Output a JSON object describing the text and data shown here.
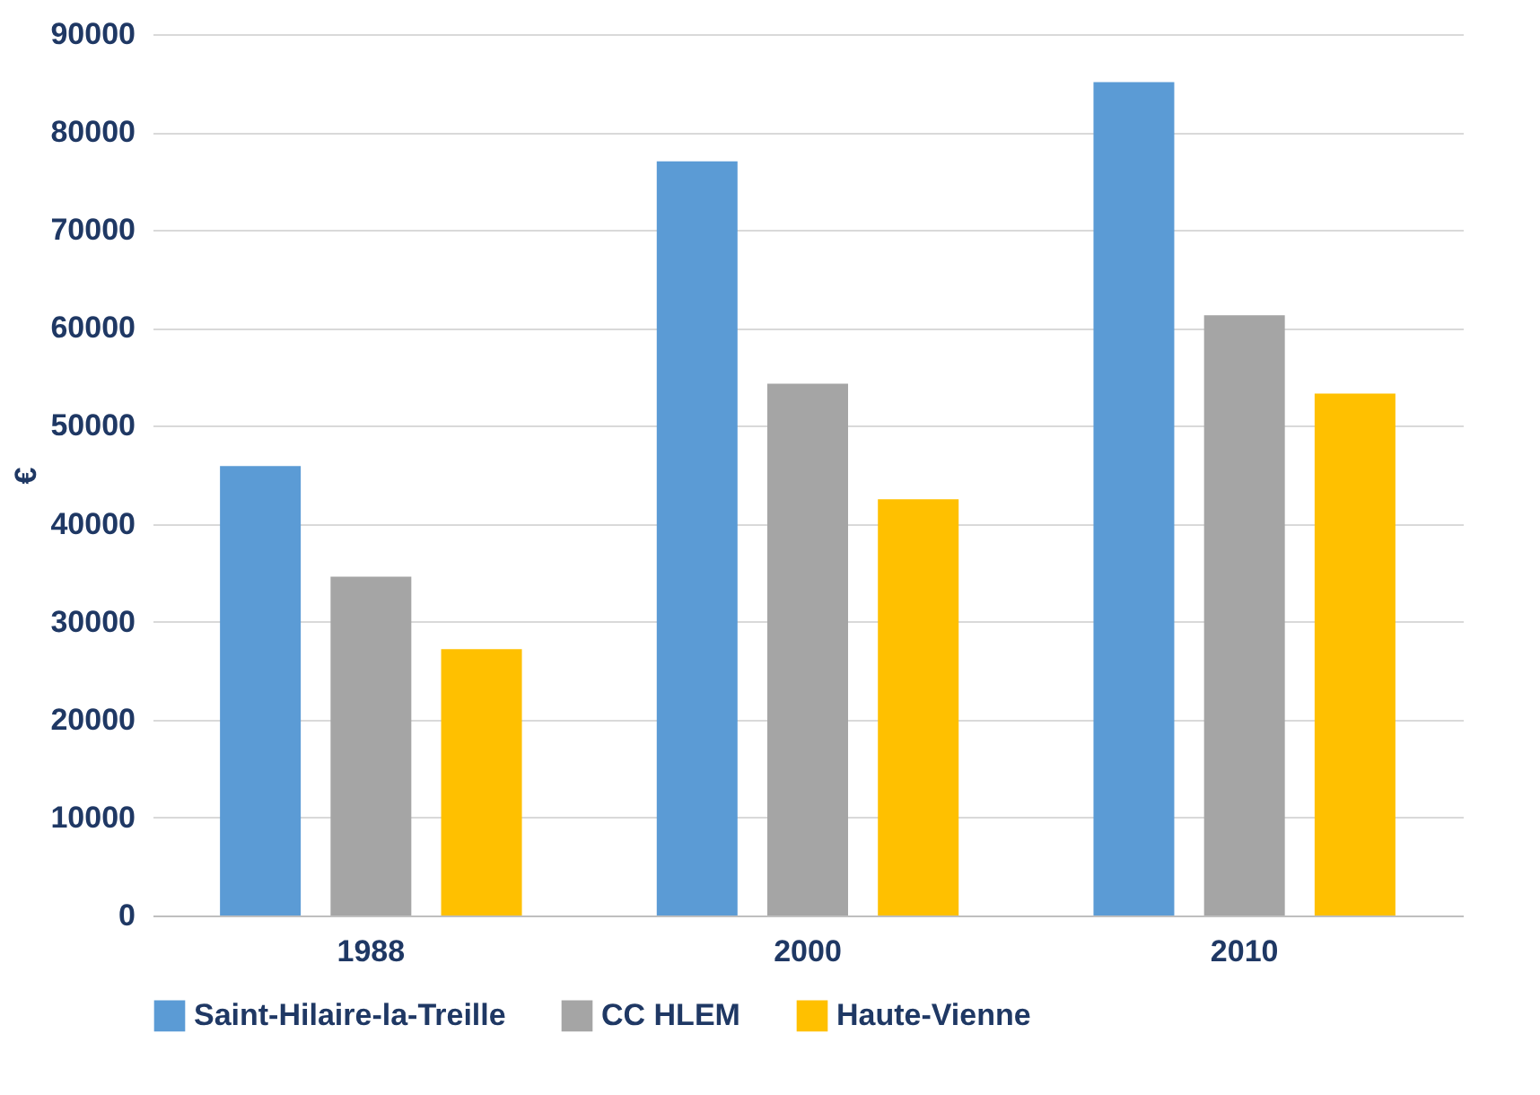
{
  "chart_data": {
    "type": "bar",
    "ylabel": "€",
    "categories": [
      "1988",
      "2000",
      "2010"
    ],
    "series": [
      {
        "name": "Saint-Hilaire-la-Treille",
        "color": "#5b9bd5",
        "values": [
          45900,
          77000,
          85100
        ]
      },
      {
        "name": "CC HLEM",
        "color": "#a5a5a5",
        "values": [
          34600,
          54300,
          61300
        ]
      },
      {
        "name": "Haute-Vienne",
        "color": "#ffc000",
        "values": [
          27200,
          42500,
          53300
        ]
      }
    ],
    "ylim": [
      0,
      90000
    ],
    "yticks": [
      0,
      10000,
      20000,
      30000,
      40000,
      50000,
      60000,
      70000,
      80000,
      90000
    ],
    "grid": "y",
    "legend": "bottom"
  }
}
